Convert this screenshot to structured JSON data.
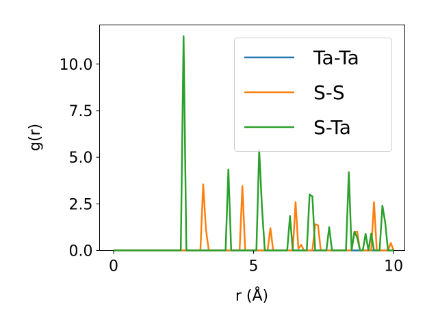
{
  "chart_data": {
    "type": "line",
    "xlabel": "r (Å)",
    "ylabel": "g(r)",
    "xlim": [
      -0.5,
      10.4
    ],
    "ylim": [
      0,
      12.1
    ],
    "xticks": [
      0,
      5,
      10
    ],
    "yticks": [
      0.0,
      2.5,
      5.0,
      7.5,
      10.0
    ],
    "xtick_labels": [
      "0",
      "5",
      "10"
    ],
    "ytick_labels": [
      "0.0",
      "2.5",
      "5.0",
      "7.5",
      "10.0"
    ],
    "grid": false,
    "legend_position": "top-right",
    "series": [
      {
        "name": "Ta-Ta",
        "color": "#1f77b4",
        "points": [
          [
            0,
            0
          ],
          [
            10,
            0
          ]
        ]
      },
      {
        "name": "S-S",
        "color": "#ff7f0e",
        "points": [
          [
            0,
            0
          ],
          [
            3.1,
            0
          ],
          [
            3.2,
            3.55
          ],
          [
            3.3,
            1.1
          ],
          [
            3.4,
            0
          ],
          [
            4.4,
            0
          ],
          [
            4.5,
            0
          ],
          [
            4.6,
            3.45
          ],
          [
            4.7,
            0
          ],
          [
            5.5,
            0
          ],
          [
            5.6,
            1.2
          ],
          [
            5.7,
            0
          ],
          [
            6.4,
            0
          ],
          [
            6.5,
            2.6
          ],
          [
            6.6,
            0.1
          ],
          [
            6.7,
            0.3
          ],
          [
            6.8,
            0
          ],
          [
            7.1,
            0
          ],
          [
            7.2,
            1.4
          ],
          [
            7.3,
            1.35
          ],
          [
            7.4,
            0
          ],
          [
            8.5,
            0
          ],
          [
            8.6,
            1.0
          ],
          [
            8.7,
            1.0
          ],
          [
            8.8,
            0
          ],
          [
            9.2,
            0
          ],
          [
            9.3,
            2.6
          ],
          [
            9.4,
            0
          ],
          [
            9.8,
            0
          ],
          [
            9.9,
            0.4
          ],
          [
            10.0,
            0
          ]
        ]
      },
      {
        "name": "S-Ta",
        "color": "#2ca02c",
        "points": [
          [
            0,
            0
          ],
          [
            2.4,
            0
          ],
          [
            2.5,
            11.5
          ],
          [
            2.6,
            0
          ],
          [
            4.0,
            0
          ],
          [
            4.1,
            4.35
          ],
          [
            4.2,
            0
          ],
          [
            5.1,
            0
          ],
          [
            5.2,
            5.4
          ],
          [
            5.3,
            2.3
          ],
          [
            5.4,
            0
          ],
          [
            6.2,
            0
          ],
          [
            6.3,
            1.85
          ],
          [
            6.4,
            0
          ],
          [
            6.9,
            0
          ],
          [
            7.0,
            3.0
          ],
          [
            7.1,
            2.9
          ],
          [
            7.2,
            0
          ],
          [
            7.6,
            0
          ],
          [
            7.7,
            1.25
          ],
          [
            7.8,
            0
          ],
          [
            8.3,
            0
          ],
          [
            8.4,
            4.2
          ],
          [
            8.5,
            0
          ],
          [
            8.6,
            1.0
          ],
          [
            8.7,
            0.7
          ],
          [
            8.8,
            0
          ],
          [
            8.9,
            0
          ],
          [
            9.0,
            0.9
          ],
          [
            9.1,
            0
          ],
          [
            9.2,
            0.9
          ],
          [
            9.3,
            0
          ],
          [
            9.5,
            0
          ],
          [
            9.6,
            2.4
          ],
          [
            9.7,
            1.5
          ],
          [
            9.8,
            0
          ],
          [
            10.0,
            0
          ]
        ]
      }
    ]
  }
}
